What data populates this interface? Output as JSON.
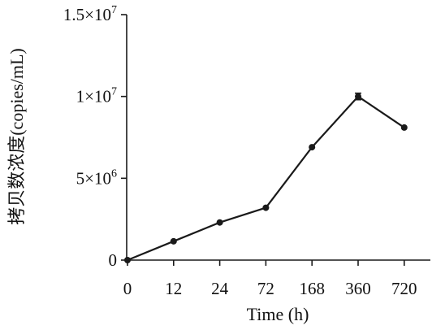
{
  "chart_data": {
    "type": "line",
    "title": "",
    "xlabel": "Time (h)",
    "ylabel": "拷贝数浓度(copies/mL)",
    "categories": [
      "0",
      "12",
      "24",
      "72",
      "168",
      "360",
      "720"
    ],
    "series": [
      {
        "values": [
          0,
          1150000,
          2300000,
          3200000,
          6900000,
          10000000,
          8100000
        ]
      }
    ],
    "error_bars": [
      0,
      0,
      0,
      0,
      0,
      200000,
      0
    ],
    "ylim": [
      0,
      15000000
    ],
    "yticks": [
      {
        "value": 0,
        "mantissa": "0",
        "exponent": ""
      },
      {
        "value": 5000000,
        "mantissa": "5×10",
        "exponent": "6"
      },
      {
        "value": 10000000,
        "mantissa": "1×10",
        "exponent": "7"
      },
      {
        "value": 15000000,
        "mantissa": "1.5×10",
        "exponent": "7"
      }
    ],
    "grid": false,
    "colors": {
      "line": "#1a1a1a",
      "axis": "#1a1a1a"
    }
  }
}
